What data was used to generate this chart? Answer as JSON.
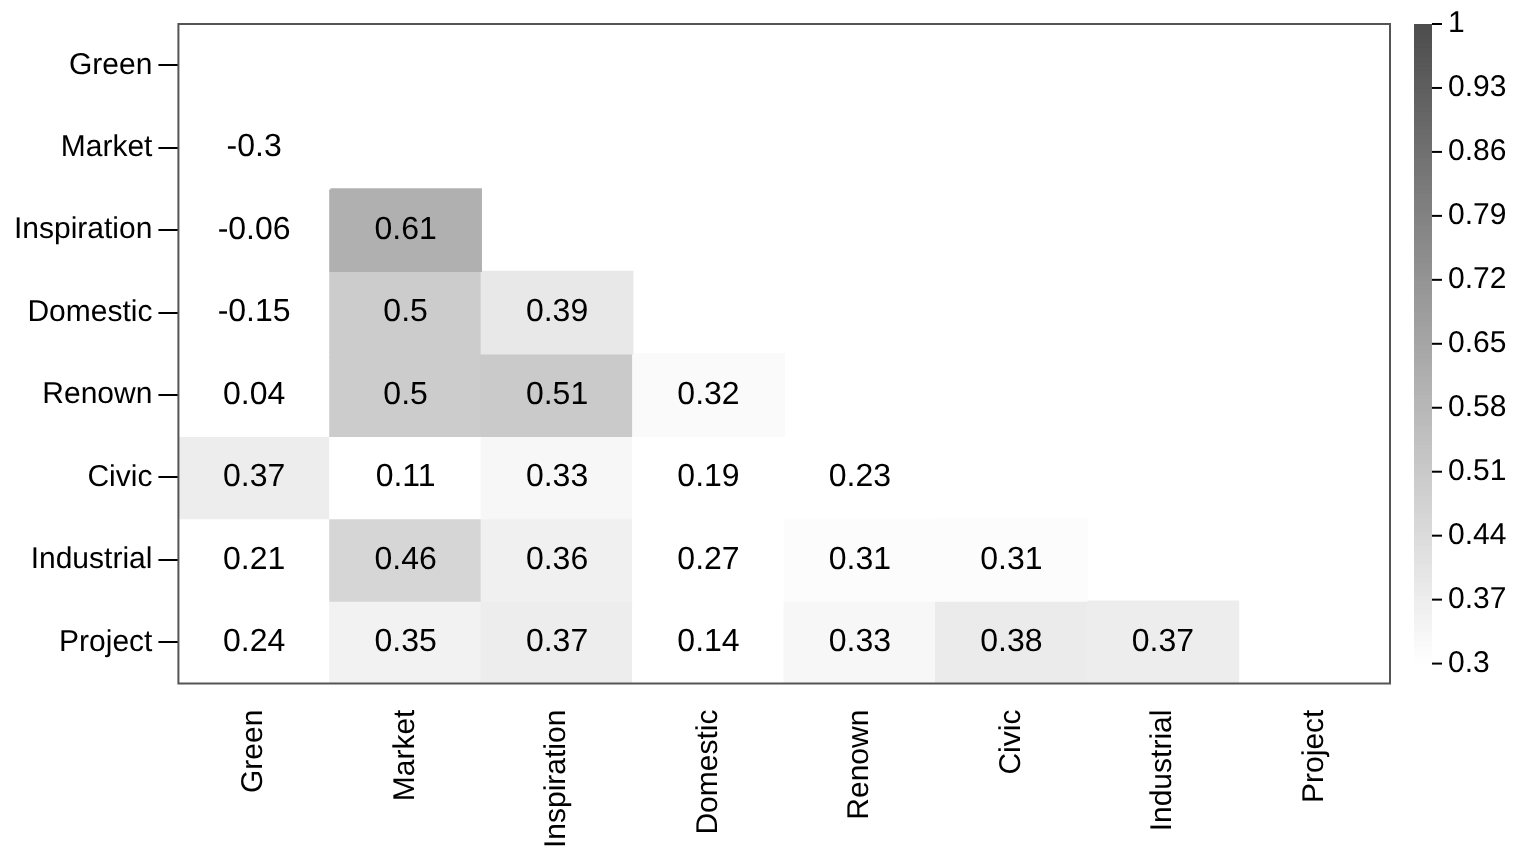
{
  "chart_data": {
    "type": "heatmap",
    "categories": [
      "Green",
      "Market",
      "Inspiration",
      "Domestic",
      "Renown",
      "Civic",
      "Industrial",
      "Project"
    ],
    "y_categories": [
      "Green",
      "Market",
      "Inspiration",
      "Domestic",
      "Renown",
      "Civic",
      "Industrial",
      "Project"
    ],
    "cells": [
      [
        null,
        null,
        null,
        null,
        null,
        null,
        null,
        null
      ],
      [
        -0.3,
        null,
        null,
        null,
        null,
        null,
        null,
        null
      ],
      [
        -0.06,
        0.61,
        null,
        null,
        null,
        null,
        null,
        null
      ],
      [
        -0.15,
        0.5,
        0.39,
        null,
        null,
        null,
        null,
        null
      ],
      [
        0.04,
        0.5,
        0.51,
        0.32,
        null,
        null,
        null,
        null
      ],
      [
        0.37,
        0.11,
        0.33,
        0.19,
        0.23,
        null,
        null,
        null
      ],
      [
        0.21,
        0.46,
        0.36,
        0.27,
        0.31,
        0.31,
        null,
        null
      ],
      [
        0.24,
        0.35,
        0.37,
        0.14,
        0.33,
        0.38,
        0.37,
        null
      ]
    ],
    "clim": [
      0.3,
      1
    ],
    "cticks": [
      0.3,
      0.37,
      0.44,
      0.51,
      0.58,
      0.65,
      0.72,
      0.79,
      0.86,
      0.93,
      1
    ],
    "data_labels": true,
    "grid": false,
    "legend": false
  }
}
